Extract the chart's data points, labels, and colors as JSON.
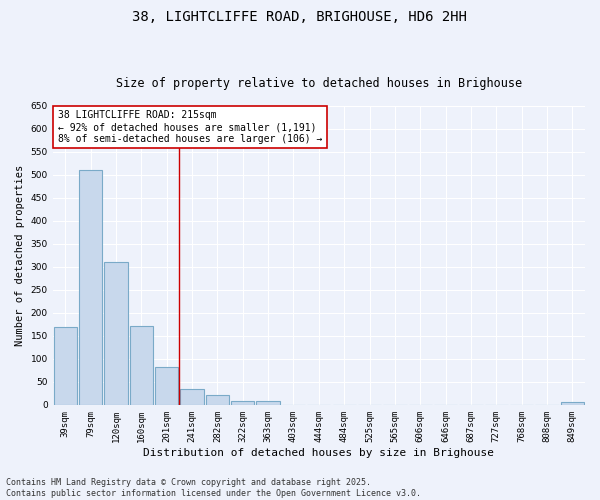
{
  "title": "38, LIGHTCLIFFE ROAD, BRIGHOUSE, HD6 2HH",
  "subtitle": "Size of property relative to detached houses in Brighouse",
  "xlabel": "Distribution of detached houses by size in Brighouse",
  "ylabel": "Number of detached properties",
  "categories": [
    "39sqm",
    "79sqm",
    "120sqm",
    "160sqm",
    "201sqm",
    "241sqm",
    "282sqm",
    "322sqm",
    "363sqm",
    "403sqm",
    "444sqm",
    "484sqm",
    "525sqm",
    "565sqm",
    "606sqm",
    "646sqm",
    "687sqm",
    "727sqm",
    "768sqm",
    "808sqm",
    "849sqm"
  ],
  "values": [
    170,
    510,
    310,
    172,
    82,
    35,
    22,
    8,
    8,
    0,
    0,
    0,
    0,
    0,
    0,
    0,
    0,
    0,
    0,
    0,
    6
  ],
  "bar_color": "#c8d8ec",
  "bar_edge_color": "#7aaac8",
  "bar_edge_width": 0.8,
  "red_line_x": 4.5,
  "annotation_line1": "38 LIGHTCLIFFE ROAD: 215sqm",
  "annotation_line2": "← 92% of detached houses are smaller (1,191)",
  "annotation_line3": "8% of semi-detached houses are larger (106) →",
  "annotation_box_color": "#ffffff",
  "annotation_box_edge_color": "#cc0000",
  "ylim": [
    0,
    650
  ],
  "yticks": [
    0,
    50,
    100,
    150,
    200,
    250,
    300,
    350,
    400,
    450,
    500,
    550,
    600,
    650
  ],
  "background_color": "#eef2fb",
  "grid_color": "#ffffff",
  "footer_line1": "Contains HM Land Registry data © Crown copyright and database right 2025.",
  "footer_line2": "Contains public sector information licensed under the Open Government Licence v3.0.",
  "title_fontsize": 10,
  "subtitle_fontsize": 8.5,
  "xlabel_fontsize": 8,
  "ylabel_fontsize": 7.5,
  "tick_fontsize": 6.5,
  "annotation_fontsize": 7,
  "footer_fontsize": 6
}
